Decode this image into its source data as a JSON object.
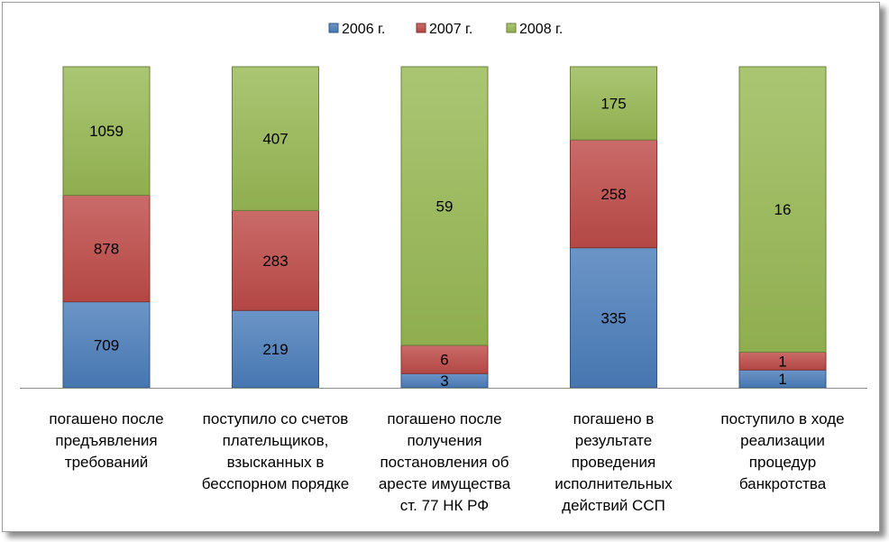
{
  "chart_data": {
    "type": "bar",
    "stacked": "percent",
    "categories": [
      "погашено после предъявления требований",
      "поступило со счетов плательщиков, взысканных в бесспорном порядке",
      "погашено после получения постановления об аресте имущества ст. 77 НК РФ",
      "погашено в результате проведения исполнительных действий ССП",
      "поступило в ходе реализации процедур банкротства"
    ],
    "category_lines": [
      [
        "погашено после",
        "предъявления",
        "требований"
      ],
      [
        "поступило со счетов",
        "плательщиков,",
        "взысканных в",
        "бесспорном порядке"
      ],
      [
        "погашено после",
        "получения",
        "постановления об",
        "аресте имущества",
        "ст. 77 НК РФ"
      ],
      [
        "погашено в",
        "результате",
        "проведения",
        "исполнительных",
        "действий ССП"
      ],
      [
        "поступило в ходе",
        "реализации",
        "процедур",
        "банкротства"
      ]
    ],
    "series": [
      {
        "name": "2006 г.",
        "color": "#4a7ebb",
        "values": [
          709,
          219,
          3,
          335,
          1
        ]
      },
      {
        "name": "2007 г.",
        "color": "#be4b48",
        "values": [
          878,
          283,
          6,
          258,
          1
        ]
      },
      {
        "name": "2008 г.",
        "color": "#98b954",
        "values": [
          1059,
          407,
          59,
          175,
          16
        ]
      }
    ],
    "legend_position": "top",
    "grid": false
  }
}
